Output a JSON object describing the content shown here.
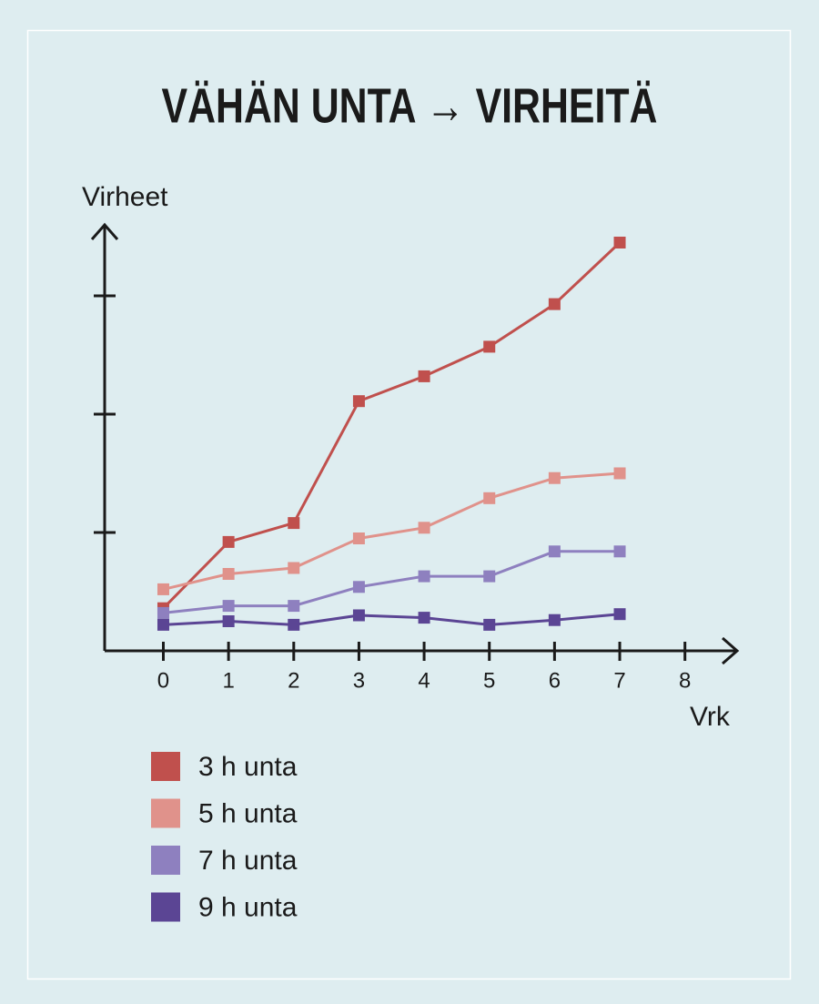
{
  "chart_data": {
    "type": "line",
    "title": "VÄHÄN UNTA → VIRHEITÄ",
    "y_label": "Virheet",
    "x_label": "Vrk",
    "x": [
      0,
      1,
      2,
      3,
      4,
      5,
      6,
      7
    ],
    "xlim": [
      -0.9,
      8.8
    ],
    "xticks": [
      0,
      1,
      2,
      3,
      4,
      5,
      6,
      7,
      8
    ],
    "ylim": [
      0,
      3.6
    ],
    "yticks": [
      1,
      2,
      3
    ],
    "series": [
      {
        "name": "3 h unta",
        "color": "#c0504d",
        "values": [
          0.36,
          0.92,
          1.08,
          2.11,
          2.32,
          2.57,
          2.93,
          3.45
        ]
      },
      {
        "name": "5 h unta",
        "color": "#e0928b",
        "values": [
          0.52,
          0.65,
          0.7,
          0.95,
          1.04,
          1.29,
          1.46,
          1.5
        ]
      },
      {
        "name": "7 h unta",
        "color": "#8e80bf",
        "values": [
          0.32,
          0.38,
          0.38,
          0.54,
          0.63,
          0.63,
          0.84,
          0.84
        ]
      },
      {
        "name": "9 h unta",
        "color": "#5b4594",
        "values": [
          0.22,
          0.25,
          0.22,
          0.3,
          0.28,
          0.22,
          0.26,
          0.31
        ]
      }
    ]
  }
}
